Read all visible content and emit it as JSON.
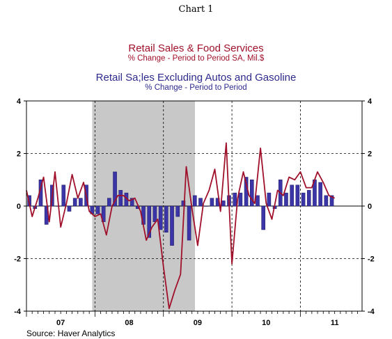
{
  "header": {
    "chart_number": "Chart 1",
    "series1_title": "Retail Sales & Food Services",
    "series1_subtitle": "% Change - Period to Period     SA, Mil.$",
    "series2_title": "Retail Sa;les Excluding Autos and Gasoline",
    "series2_subtitle": "% Change - Period to Period"
  },
  "footer": {
    "source": "Source: Haver Analytics"
  },
  "colors": {
    "line": "#a0102a",
    "bar": "#3b35a8",
    "bar_edge": "#1a1760",
    "recession": "#c8c8c8"
  },
  "chart_data": {
    "type": "bar",
    "title": "Chart 1",
    "ylim": [
      -4,
      4
    ],
    "yticks": [
      -4,
      -2,
      0,
      2,
      4
    ],
    "xlim": [
      2007.0,
      2011.9
    ],
    "xticks": [
      {
        "label": "07",
        "pos": 2007.5
      },
      {
        "label": "08",
        "pos": 2008.5
      },
      {
        "label": "09",
        "pos": 2009.5
      },
      {
        "label": "10",
        "pos": 2010.5
      },
      {
        "label": "11",
        "pos": 2011.5
      }
    ],
    "vertical_gridlines": [
      2008.0,
      2009.0,
      2010.0,
      2011.0
    ],
    "grid": true,
    "shaded_period": {
      "start": 2007.96,
      "end": 2009.46
    },
    "series": [
      {
        "name": "Retail Sa;les Excluding Autos and Gasoline",
        "kind": "bar",
        "start": 2007.0,
        "step": 0.08333,
        "values": [
          0.4,
          -0.1,
          1.0,
          -0.7,
          0.8,
          0.0,
          0.8,
          -0.2,
          0.3,
          0.3,
          0.8,
          -0.3,
          -0.3,
          -0.6,
          0.3,
          1.3,
          0.6,
          0.5,
          0.3,
          -0.1,
          -0.7,
          -1.2,
          -0.6,
          -0.9,
          -1.0,
          -1.5,
          -0.4,
          0.2,
          -1.3,
          0.4,
          0.3,
          0.0,
          0.3,
          0.3,
          0.2,
          0.4,
          0.5,
          0.5,
          1.1,
          1.0,
          0.4,
          -0.9,
          0.5,
          -0.1,
          1.0,
          0.5,
          0.8,
          0.8,
          0.5,
          0.6,
          1.0,
          0.9,
          0.4,
          0.4
        ]
      },
      {
        "name": "Retail Sales & Food Services",
        "kind": "line",
        "start": 2007.0,
        "step": 0.08333,
        "values": [
          0.6,
          -0.4,
          0.3,
          1.1,
          -0.6,
          1.3,
          -0.8,
          0.1,
          1.2,
          0.3,
          0.9,
          -0.2,
          -0.4,
          -0.3,
          -1.1,
          0.0,
          0.4,
          0.4,
          0.2,
          0.3,
          -0.2,
          -1.3,
          -0.8,
          -0.5,
          -2.3,
          -3.9,
          -3.2,
          -2.6,
          1.5,
          -0.1,
          -1.5,
          0.1,
          0.6,
          1.4,
          -0.2,
          2.4,
          -2.2,
          0.3,
          1.3,
          0.4,
          0.1,
          2.2,
          0.1,
          -0.5,
          0.6,
          0.4,
          1.1,
          1.0,
          1.3,
          0.7,
          0.7,
          1.3,
          0.9,
          0.4,
          0.3
        ]
      }
    ]
  }
}
